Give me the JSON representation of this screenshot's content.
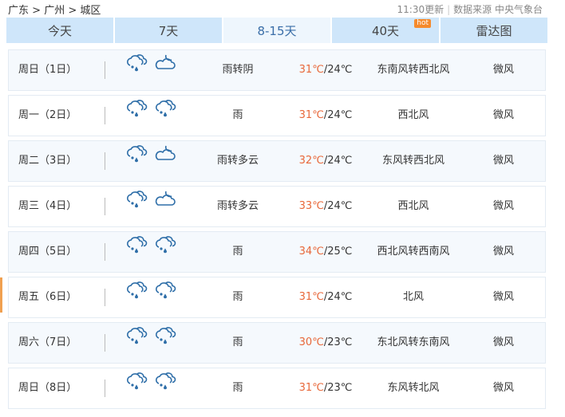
{
  "breadcrumb": {
    "province": "广东",
    "city": "广州",
    "district": "城区",
    "sep": ">"
  },
  "source": {
    "update": "11:30更新",
    "label": "数据来源 中央气象台"
  },
  "tabs": [
    {
      "label": "今天"
    },
    {
      "label": "7天"
    },
    {
      "label": "8-15天",
      "active": true
    },
    {
      "label": "40天",
      "badge": "hot"
    },
    {
      "label": "雷达图"
    }
  ],
  "colors": {
    "accent": "#3a6ea8",
    "high_temp": "#e8683a",
    "tab_bg": "#cfe6fa"
  },
  "days": [
    {
      "date": "周日（1日）",
      "icons": [
        "rain-cloud-icon",
        "cloud-moon-icon"
      ],
      "desc": "雨转阴",
      "high": "31℃",
      "low": "/24℃",
      "wind_dir": "东南风转西北风",
      "wind_force": "微风"
    },
    {
      "date": "周一（2日）",
      "icons": [
        "rain-cloud-icon",
        "rain-cloud-icon"
      ],
      "desc": "雨",
      "high": "31℃",
      "low": "/24℃",
      "wind_dir": "西北风",
      "wind_force": "微风"
    },
    {
      "date": "周二（3日）",
      "icons": [
        "rain-cloud-icon",
        "cloud-moon-icon"
      ],
      "desc": "雨转多云",
      "high": "32℃",
      "low": "/24℃",
      "wind_dir": "东风转西北风",
      "wind_force": "微风"
    },
    {
      "date": "周三（4日）",
      "icons": [
        "rain-cloud-icon",
        "cloud-moon-icon"
      ],
      "desc": "雨转多云",
      "high": "33℃",
      "low": "/24℃",
      "wind_dir": "西北风",
      "wind_force": "微风"
    },
    {
      "date": "周四（5日）",
      "icons": [
        "rain-cloud-icon",
        "rain-cloud-icon"
      ],
      "desc": "雨",
      "high": "34℃",
      "low": "/25℃",
      "wind_dir": "西北风转西南风",
      "wind_force": "微风"
    },
    {
      "date": "周五（6日）",
      "icons": [
        "rain-cloud-icon",
        "rain-cloud-icon"
      ],
      "desc": "雨",
      "high": "31℃",
      "low": "/24℃",
      "wind_dir": "北风",
      "wind_force": "微风"
    },
    {
      "date": "周六（7日）",
      "icons": [
        "rain-cloud-icon",
        "rain-cloud-icon"
      ],
      "desc": "雨",
      "high": "30℃",
      "low": "/23℃",
      "wind_dir": "东北风转东南风",
      "wind_force": "微风"
    },
    {
      "date": "周日（8日）",
      "icons": [
        "rain-cloud-icon",
        "rain-cloud-icon"
      ],
      "desc": "雨",
      "high": "31℃",
      "low": "/23℃",
      "wind_dir": "东风转北风",
      "wind_force": "微风"
    }
  ]
}
